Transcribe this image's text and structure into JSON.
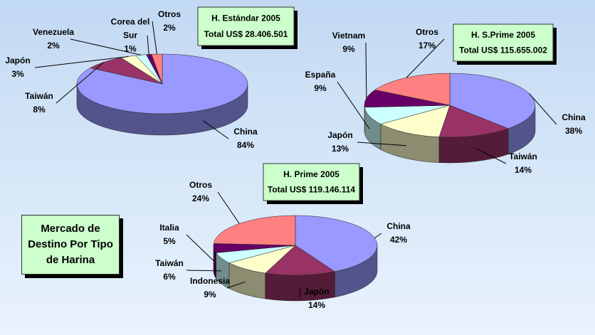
{
  "title": "Mercado de Destino Por Tipo de Harina",
  "chart_data": [
    {
      "type": "pie",
      "title": "H. Estándar 2005",
      "subtitle": "Total US$ 28.406.501",
      "categories": [
        "China",
        "Taiwán",
        "Japón",
        "Venezuela",
        "Corea del Sur",
        "Otros"
      ],
      "values": [
        84,
        8,
        3,
        2,
        1,
        2
      ],
      "value_labels": [
        "84%",
        "8%",
        "3%",
        "2%",
        "1%",
        "2%"
      ],
      "colors": [
        "#9999ff",
        "#993366",
        "#ffffcc",
        "#ccffff",
        "#660066",
        "#ff8080"
      ]
    },
    {
      "type": "pie",
      "title": "H. S.Prime 2005",
      "subtitle": "Total US$ 115.655.002",
      "categories": [
        "China",
        "Taiwán",
        "Japón",
        "España",
        "Vietnam",
        "Otros"
      ],
      "values": [
        38,
        14,
        13,
        9,
        9,
        17
      ],
      "value_labels": [
        "38%",
        "14%",
        "13%",
        "9%",
        "9%",
        "17%"
      ],
      "colors": [
        "#9999ff",
        "#993366",
        "#ffffcc",
        "#ccffff",
        "#660066",
        "#ff8080"
      ]
    },
    {
      "type": "pie",
      "title": "H. Prime 2005",
      "subtitle": "Total US$ 119.146.114",
      "categories": [
        "China",
        "Japón",
        "Indonesia",
        "Taiwán",
        "Italia",
        "Otros"
      ],
      "values": [
        42,
        14,
        9,
        6,
        5,
        24
      ],
      "value_labels": [
        "42%",
        "14%",
        "9%",
        "6%",
        "5%",
        "24%"
      ],
      "colors": [
        "#9999ff",
        "#993366",
        "#ffffcc",
        "#ccffff",
        "#660066",
        "#ff8080"
      ]
    }
  ]
}
